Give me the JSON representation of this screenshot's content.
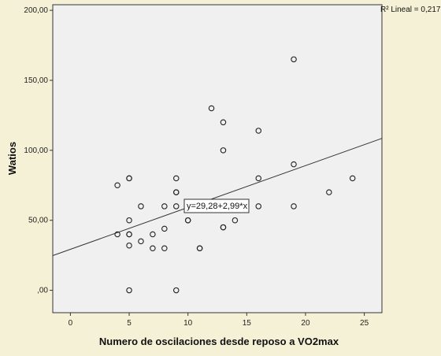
{
  "chart_data": {
    "type": "scatter",
    "title": "",
    "xlabel": "Numero de oscilaciones desde reposo a VO2max",
    "ylabel": "Watios",
    "xlim": [
      -1.5,
      26.5
    ],
    "ylim": [
      -16,
      204
    ],
    "xticks": [
      0,
      5,
      10,
      15,
      20,
      25
    ],
    "xtick_labels": [
      "0",
      "5",
      "10",
      "15",
      "20",
      "25"
    ],
    "yticks": [
      0,
      50,
      100,
      150,
      200
    ],
    "ytick_labels": [
      ",00",
      "50,00",
      "100,00",
      "150,00",
      "200,00"
    ],
    "grid": false,
    "legend": "top-right",
    "r2_label": "R² Lineal = 0,217",
    "equation_label": "y=29,28+2,99*x",
    "fit": {
      "intercept": 29.28,
      "slope": 2.99
    },
    "points": [
      {
        "x": 4,
        "y": 75
      },
      {
        "x": 4,
        "y": 40
      },
      {
        "x": 5,
        "y": 80
      },
      {
        "x": 5,
        "y": 80
      },
      {
        "x": 5,
        "y": 50
      },
      {
        "x": 5,
        "y": 40
      },
      {
        "x": 5,
        "y": 40
      },
      {
        "x": 5,
        "y": 32
      },
      {
        "x": 5,
        "y": 0
      },
      {
        "x": 6,
        "y": 60
      },
      {
        "x": 6,
        "y": 35
      },
      {
        "x": 7,
        "y": 40
      },
      {
        "x": 7,
        "y": 30
      },
      {
        "x": 8,
        "y": 60
      },
      {
        "x": 8,
        "y": 44
      },
      {
        "x": 8,
        "y": 30
      },
      {
        "x": 9,
        "y": 80
      },
      {
        "x": 9,
        "y": 70
      },
      {
        "x": 9,
        "y": 70
      },
      {
        "x": 9,
        "y": 60
      },
      {
        "x": 9,
        "y": 0
      },
      {
        "x": 10,
        "y": 60
      },
      {
        "x": 10,
        "y": 50
      },
      {
        "x": 10,
        "y": 50
      },
      {
        "x": 11,
        "y": 30
      },
      {
        "x": 11,
        "y": 30
      },
      {
        "x": 12,
        "y": 130
      },
      {
        "x": 13,
        "y": 120
      },
      {
        "x": 13,
        "y": 100
      },
      {
        "x": 13,
        "y": 45
      },
      {
        "x": 13,
        "y": 45
      },
      {
        "x": 14,
        "y": 50
      },
      {
        "x": 16,
        "y": 114
      },
      {
        "x": 16,
        "y": 80
      },
      {
        "x": 16,
        "y": 60
      },
      {
        "x": 19,
        "y": 165
      },
      {
        "x": 19,
        "y": 90
      },
      {
        "x": 19,
        "y": 60
      },
      {
        "x": 22,
        "y": 70
      },
      {
        "x": 24,
        "y": 80
      }
    ]
  }
}
